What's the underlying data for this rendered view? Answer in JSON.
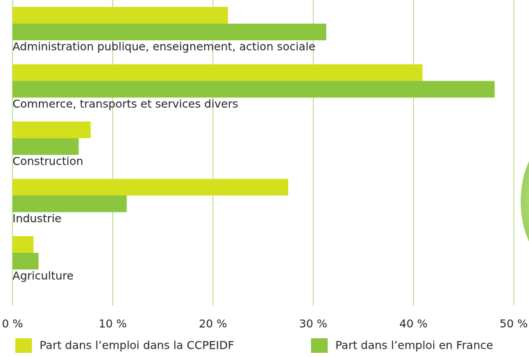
{
  "chart_data": {
    "type": "hbar",
    "categories": [
      "Administration publique, enseignement, action sociale",
      "Commerce, transports et services divers",
      "Construction",
      "Industrie",
      "Agriculture"
    ],
    "series": [
      {
        "name": "Part dans l’emploi dans la CCPEIDF",
        "color": "#d4e01e",
        "values": [
          21.5,
          40.9,
          7.8,
          27.5,
          2.1
        ]
      },
      {
        "name": "Part dans l’emploi en France",
        "color": "#8cc63f",
        "values": [
          31.3,
          48.1,
          6.6,
          11.4,
          2.6
        ]
      }
    ],
    "xlim": [
      0,
      50
    ],
    "xticks": [
      {
        "value": 0,
        "label": "0 %"
      },
      {
        "value": 10,
        "label": "10 %"
      },
      {
        "value": 20,
        "label": "20 %"
      },
      {
        "value": 30,
        "label": "30 %"
      },
      {
        "value": 40,
        "label": "40 %"
      },
      {
        "value": 50,
        "label": "50 %"
      }
    ],
    "grid": true
  }
}
